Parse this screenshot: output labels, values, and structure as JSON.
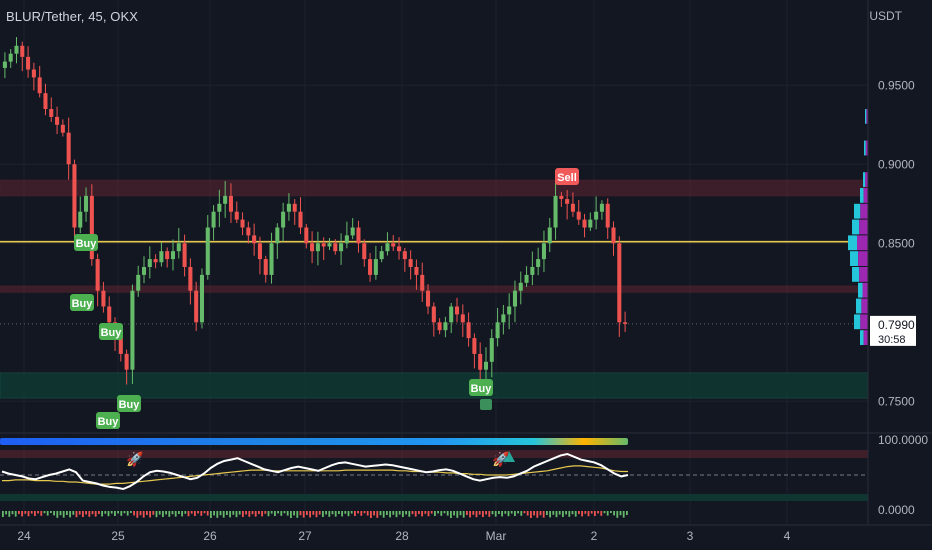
{
  "header": {
    "symbol_title": "BLUR/Tether, 45, OKX",
    "currency": "USDT"
  },
  "price_axis": {
    "labels": [
      "0.9500",
      "0.9000",
      "0.8500",
      "0.7500"
    ],
    "current_price": "0.7990",
    "countdown": "30:58"
  },
  "oscillator_axis": {
    "labels": [
      "100.0000",
      "0.0000"
    ]
  },
  "time_axis": {
    "labels": [
      "24",
      "25",
      "26",
      "27",
      "28",
      "Mar",
      "2",
      "3",
      "4"
    ]
  },
  "signals": [
    {
      "label": "Buy",
      "type": "buy"
    },
    {
      "label": "Buy",
      "type": "buy"
    },
    {
      "label": "Buy",
      "type": "buy"
    },
    {
      "label": "Buy",
      "type": "buy"
    },
    {
      "label": "Buy",
      "type": "buy"
    },
    {
      "label": "Buy",
      "type": "buy"
    },
    {
      "label": "Sell",
      "type": "sell"
    }
  ],
  "colors": {
    "background": "#131722",
    "up": "#26a69a",
    "up_light": "#66bb6a",
    "down": "#ef5350",
    "level_line": "#e6c84f",
    "resistance_zone": "#5c2430",
    "support_zone": "#0f3a33",
    "buy_label": "#4caf50",
    "sell_label": "#f05a5a",
    "oscillator_line": "#ffffff",
    "signal_line": "#e6c84f"
  },
  "chart_data": {
    "type": "candlestick",
    "title": "BLUR/Tether, 45, OKX",
    "x_ticks": [
      "24",
      "25",
      "26",
      "27",
      "28",
      "Mar",
      "2",
      "3",
      "4"
    ],
    "y_ticks": [
      0.95,
      0.9,
      0.85,
      0.75
    ],
    "ylim": [
      0.735,
      0.985
    ],
    "y_unit": "USDT",
    "last_price": 0.799,
    "horizontal_level": 0.851,
    "resistance_zones": [
      [
        0.88,
        0.89
      ],
      [
        0.819,
        0.823
      ]
    ],
    "support_zone": [
      0.752,
      0.768
    ],
    "closes": [
      0.965,
      0.97,
      0.975,
      0.968,
      0.96,
      0.955,
      0.945,
      0.935,
      0.93,
      0.925,
      0.92,
      0.9,
      0.86,
      0.87,
      0.88,
      0.84,
      0.82,
      0.81,
      0.8,
      0.79,
      0.78,
      0.77,
      0.82,
      0.83,
      0.835,
      0.84,
      0.838,
      0.845,
      0.84,
      0.845,
      0.85,
      0.835,
      0.82,
      0.8,
      0.83,
      0.86,
      0.87,
      0.875,
      0.88,
      0.87,
      0.865,
      0.86,
      0.855,
      0.85,
      0.84,
      0.83,
      0.85,
      0.86,
      0.87,
      0.875,
      0.87,
      0.86,
      0.85,
      0.845,
      0.85,
      0.848,
      0.85,
      0.845,
      0.85,
      0.855,
      0.86,
      0.85,
      0.84,
      0.83,
      0.84,
      0.845,
      0.85,
      0.848,
      0.845,
      0.84,
      0.835,
      0.83,
      0.82,
      0.81,
      0.8,
      0.795,
      0.8,
      0.81,
      0.805,
      0.8,
      0.79,
      0.78,
      0.77,
      0.775,
      0.79,
      0.8,
      0.805,
      0.81,
      0.82,
      0.825,
      0.83,
      0.835,
      0.84,
      0.85,
      0.86,
      0.88,
      0.878,
      0.875,
      0.87,
      0.865,
      0.86,
      0.865,
      0.87,
      0.875,
      0.86,
      0.85,
      0.8,
      0.799
    ],
    "oscillator": {
      "ylim": [
        0,
        100
      ],
      "upper_level": 80,
      "lower_level": 20,
      "values": [
        55,
        52,
        50,
        48,
        45,
        44,
        47,
        50,
        52,
        55,
        58,
        54,
        42,
        40,
        38,
        35,
        33,
        32,
        30,
        34,
        40,
        48,
        54,
        56,
        55,
        53,
        50,
        47,
        44,
        46,
        52,
        60,
        66,
        70,
        72,
        74,
        70,
        66,
        62,
        58,
        56,
        54,
        57,
        60,
        62,
        60,
        58,
        56,
        60,
        64,
        67,
        68,
        66,
        64,
        62,
        63,
        64,
        65,
        64,
        62,
        60,
        58,
        56,
        54,
        55,
        57,
        58,
        56,
        52,
        48,
        44,
        42,
        44,
        46,
        47,
        46,
        48,
        52,
        56,
        62,
        66,
        70,
        74,
        78,
        80,
        76,
        72,
        70,
        68,
        64,
        58,
        52,
        48,
        50
      ],
      "signal": [
        42,
        42,
        43,
        43,
        43,
        42,
        42,
        42,
        41,
        41,
        40,
        40,
        39,
        38,
        37,
        37,
        37,
        38,
        38,
        39,
        40,
        41,
        42,
        43,
        44,
        45,
        46,
        47,
        48,
        49,
        50,
        51,
        52,
        53,
        54,
        55,
        56,
        57,
        57,
        57,
        56,
        56,
        56,
        56,
        56,
        56,
        56,
        56,
        56,
        56,
        56,
        57,
        57,
        57,
        57,
        57,
        57,
        57,
        57,
        56,
        56,
        55,
        55,
        54,
        54,
        54,
        53,
        53,
        52,
        52,
        51,
        51,
        50,
        50,
        50,
        50,
        51,
        52,
        53,
        54,
        55,
        56,
        58,
        60,
        62,
        63,
        63,
        62,
        61,
        60,
        58,
        56,
        55,
        55
      ]
    }
  }
}
